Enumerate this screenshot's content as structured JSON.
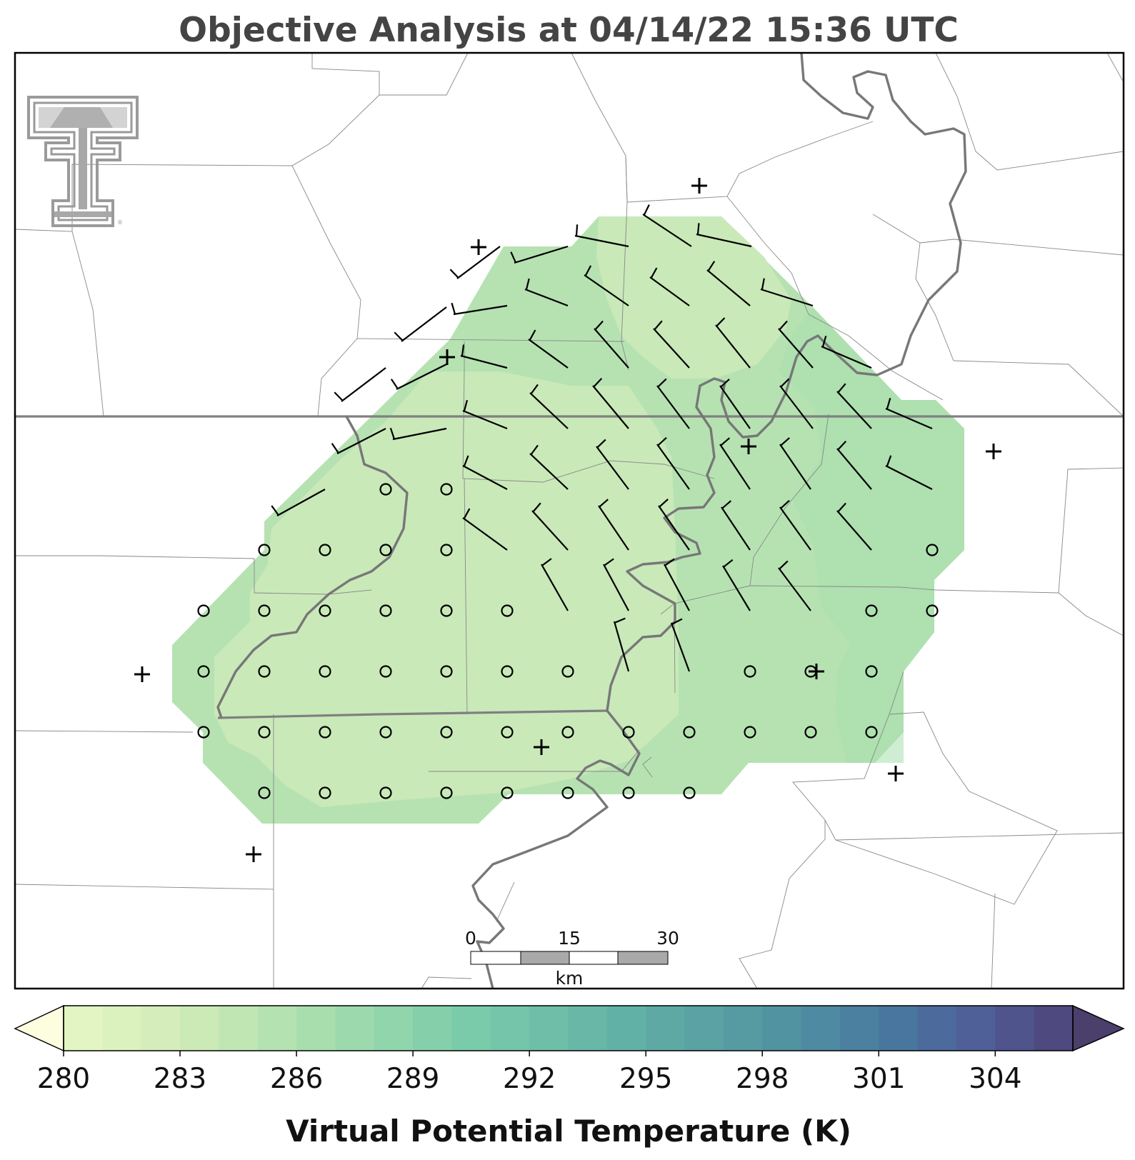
{
  "title": "Objective Analysis at 04/14/22 15:36 UTC",
  "colorbar": {
    "label": "Virtual Potential Temperature (K)",
    "ticks": [
      "280",
      "283",
      "286",
      "289",
      "292",
      "295",
      "298",
      "301",
      "304"
    ],
    "min": 280,
    "max": 306,
    "levels": 26,
    "extend": "both",
    "colormap": "crest",
    "under_color": "#fdfddf",
    "over_color": "#4b3f6b"
  },
  "scale_bar": {
    "labels": [
      "0",
      "15",
      "30"
    ],
    "unit": "km"
  },
  "logo": {
    "icon": "texas-tech-double-t-logo"
  },
  "colors": {
    "field_low": "#c9e9b9",
    "field_mid": "#b6e2b2",
    "field_high": "#a3dcab",
    "state_line": "#808080",
    "county_line": "#888888"
  },
  "analysis": {
    "field": "virtual potential temperature",
    "range_shown_K": [
      283,
      287
    ]
  }
}
